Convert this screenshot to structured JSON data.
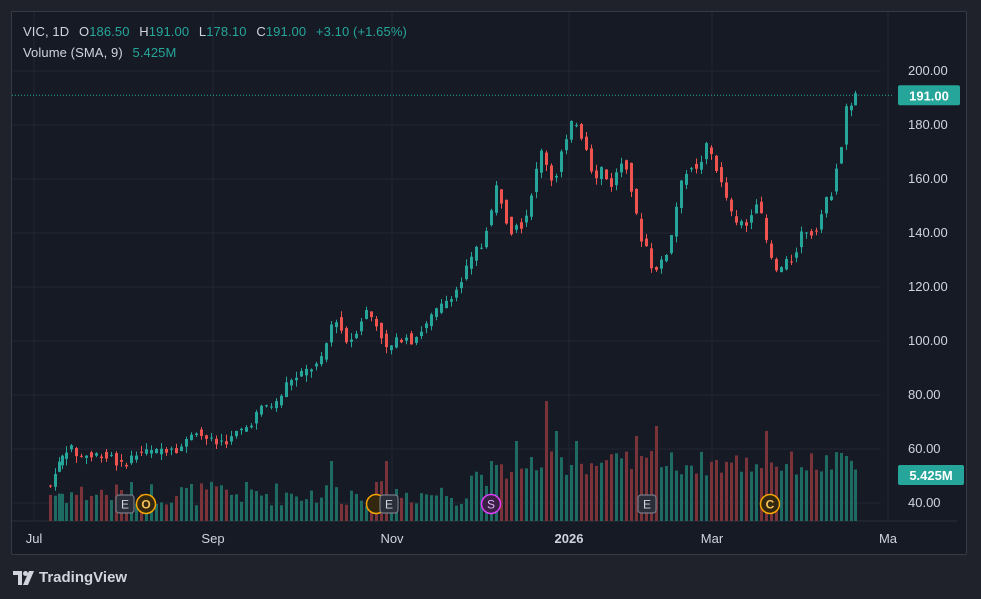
{
  "legend": {
    "symbol": "VIC",
    "interval": "1D",
    "o_label": "O",
    "o_value": "186.50",
    "h_label": "H",
    "h_value": "191.00",
    "l_label": "L",
    "l_value": "178.10",
    "c_label": "C",
    "c_value": "191.00",
    "change": "+3.10 (+1.65%)",
    "volume_label": "Volume (SMA, 9)",
    "volume_value": "5.425M"
  },
  "price_tag": "191.00",
  "volume_tag": "5.425M",
  "branding": "TradingView",
  "colors": {
    "up": "#26a69a",
    "down": "#ef5350",
    "up_volume": "#1e6b63",
    "down_volume": "#7a3338",
    "background": "#161a25",
    "grid": "#232632",
    "text": "#d1d4dc"
  },
  "events": [
    {
      "letter": "E",
      "type": "earnings"
    },
    {
      "letter": "O",
      "type": "other"
    },
    {
      "letter": "",
      "type": "other"
    },
    {
      "letter": "E",
      "type": "earnings"
    },
    {
      "letter": "S",
      "type": "split"
    },
    {
      "letter": "E",
      "type": "earnings"
    },
    {
      "letter": "C",
      "type": "other"
    }
  ],
  "chart_data": {
    "type": "candlestick",
    "symbol": "VIC",
    "interval": "1D",
    "y_range": [
      30,
      208
    ],
    "y_ticks": [
      "200.00",
      "180.00",
      "160.00",
      "140.00",
      "120.00",
      "100.00",
      "80.00",
      "60.00",
      "40.00"
    ],
    "x_ticks": [
      "Jul",
      "Sep",
      "Nov",
      "2026",
      "Mar",
      "Ma"
    ],
    "last_close": 191.0,
    "last_volume": "5.425M",
    "close_series": [
      [
        47,
        46.5
      ],
      [
        52,
        46
      ],
      [
        57,
        52
      ],
      [
        63,
        57
      ],
      [
        68,
        60
      ],
      [
        73,
        60
      ],
      [
        78,
        58
      ],
      [
        83,
        57
      ],
      [
        88,
        58
      ],
      [
        93,
        57
      ],
      [
        98,
        58
      ],
      [
        103,
        58
      ],
      [
        108,
        57
      ],
      [
        113,
        58
      ],
      [
        118,
        55
      ],
      [
        123,
        54
      ],
      [
        128,
        55
      ],
      [
        133,
        57
      ],
      [
        138,
        58
      ],
      [
        143,
        59
      ],
      [
        148,
        59
      ],
      [
        153,
        59
      ],
      [
        158,
        59
      ],
      [
        163,
        60
      ],
      [
        168,
        60
      ],
      [
        173,
        61
      ],
      [
        178,
        60
      ],
      [
        183,
        61
      ],
      [
        188,
        63
      ],
      [
        193,
        66
      ],
      [
        198,
        67
      ],
      [
        203,
        65
      ],
      [
        208,
        64
      ],
      [
        213,
        63
      ],
      [
        218,
        62
      ],
      [
        223,
        63
      ],
      [
        228,
        63
      ],
      [
        233,
        64
      ],
      [
        238,
        66
      ],
      [
        243,
        67
      ],
      [
        248,
        68
      ],
      [
        253,
        70
      ],
      [
        258,
        73
      ],
      [
        263,
        75
      ],
      [
        268,
        76
      ],
      [
        273,
        76
      ],
      [
        278,
        77
      ],
      [
        283,
        80
      ],
      [
        288,
        84
      ],
      [
        293,
        86
      ],
      [
        298,
        86
      ],
      [
        303,
        88
      ],
      [
        308,
        89
      ],
      [
        313,
        90
      ],
      [
        318,
        91
      ],
      [
        323,
        93
      ],
      [
        328,
        99
      ],
      [
        333,
        106
      ],
      [
        338,
        108
      ],
      [
        343,
        104
      ],
      [
        348,
        100
      ],
      [
        353,
        101
      ],
      [
        358,
        104
      ],
      [
        363,
        108
      ],
      [
        368,
        111
      ],
      [
        373,
        109
      ],
      [
        378,
        106
      ],
      [
        383,
        102
      ],
      [
        388,
        97
      ],
      [
        393,
        98
      ],
      [
        398,
        100
      ],
      [
        403,
        101
      ],
      [
        408,
        102
      ],
      [
        413,
        100
      ],
      [
        418,
        102
      ],
      [
        423,
        104
      ],
      [
        428,
        106
      ],
      [
        433,
        109
      ],
      [
        438,
        111
      ],
      [
        443,
        113
      ],
      [
        448,
        115
      ],
      [
        453,
        117
      ],
      [
        458,
        119
      ],
      [
        463,
        122
      ],
      [
        468,
        127
      ],
      [
        473,
        130
      ],
      [
        478,
        134
      ],
      [
        483,
        135
      ],
      [
        488,
        142
      ],
      [
        493,
        148
      ],
      [
        498,
        157
      ],
      [
        503,
        152
      ],
      [
        508,
        145
      ],
      [
        513,
        141
      ],
      [
        518,
        144
      ],
      [
        523,
        143
      ],
      [
        528,
        147
      ],
      [
        533,
        155
      ],
      [
        538,
        163
      ],
      [
        543,
        170
      ],
      [
        548,
        166
      ],
      [
        553,
        160
      ],
      [
        558,
        162
      ],
      [
        563,
        170
      ],
      [
        568,
        174
      ],
      [
        573,
        180
      ],
      [
        578,
        181
      ],
      [
        583,
        176
      ],
      [
        588,
        172
      ],
      [
        593,
        164
      ],
      [
        598,
        160
      ],
      [
        603,
        164
      ],
      [
        608,
        160
      ],
      [
        613,
        158
      ],
      [
        618,
        162
      ],
      [
        623,
        166
      ],
      [
        628,
        165
      ],
      [
        633,
        156
      ],
      [
        638,
        146
      ],
      [
        643,
        138
      ],
      [
        648,
        135
      ],
      [
        653,
        128
      ],
      [
        658,
        126
      ],
      [
        663,
        130
      ],
      [
        668,
        133
      ],
      [
        673,
        139
      ],
      [
        678,
        150
      ],
      [
        683,
        158
      ],
      [
        688,
        163
      ],
      [
        693,
        165
      ],
      [
        698,
        163
      ],
      [
        703,
        167
      ],
      [
        708,
        172
      ],
      [
        713,
        169
      ],
      [
        718,
        164
      ],
      [
        723,
        158
      ],
      [
        728,
        153
      ],
      [
        733,
        147
      ],
      [
        738,
        143
      ],
      [
        743,
        144
      ],
      [
        748,
        143
      ],
      [
        753,
        148
      ],
      [
        758,
        152
      ],
      [
        763,
        146
      ],
      [
        768,
        137
      ],
      [
        773,
        130
      ],
      [
        778,
        126
      ],
      [
        783,
        127
      ],
      [
        788,
        129
      ],
      [
        793,
        130
      ],
      [
        798,
        134
      ],
      [
        803,
        140
      ],
      [
        808,
        141
      ],
      [
        813,
        140
      ],
      [
        818,
        142
      ],
      [
        823,
        147
      ],
      [
        828,
        152
      ],
      [
        833,
        155
      ],
      [
        838,
        165
      ],
      [
        843,
        172
      ],
      [
        848,
        186
      ],
      [
        853,
        188
      ],
      [
        856,
        191
      ]
    ]
  }
}
